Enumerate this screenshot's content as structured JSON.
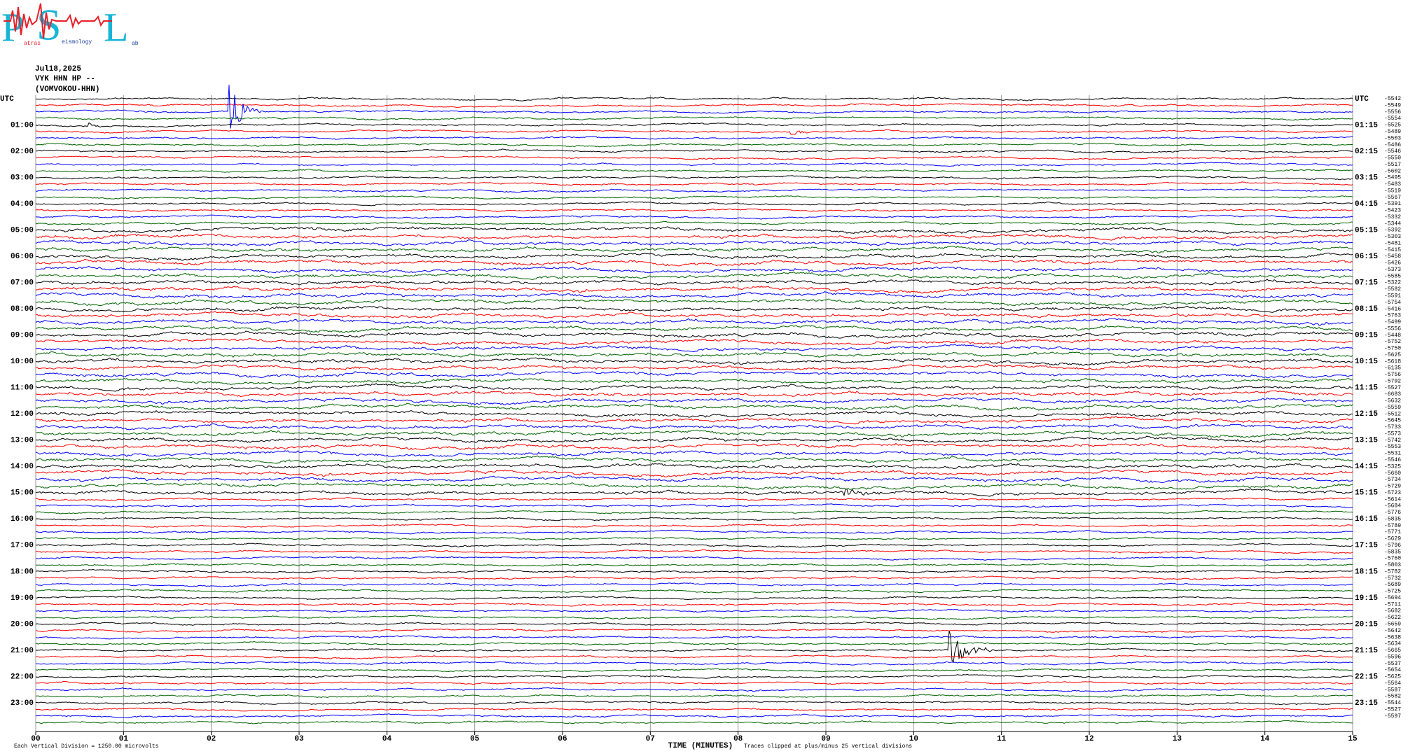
{
  "header": {
    "logo": {
      "letters": [
        "P",
        "S",
        "L"
      ],
      "small": [
        "atras",
        "eismology",
        "ab"
      ]
    },
    "date": "Jul18,2025",
    "station": "VYK HHN HP --",
    "site": "(VOMVOKOU-HHN)"
  },
  "chart_data": {
    "type": "helicorder",
    "left_labels": [
      "UTC",
      "01:00",
      "02:00",
      "03:00",
      "04:00",
      "05:00",
      "06:00",
      "07:00",
      "08:00",
      "09:00",
      "10:00",
      "11:00",
      "12:00",
      "13:00",
      "14:00",
      "15:00",
      "16:00",
      "17:00",
      "18:00",
      "19:00",
      "20:00",
      "21:00",
      "22:00",
      "23:00"
    ],
    "right_labels": [
      "UTC",
      "01:15",
      "02:15",
      "03:15",
      "04:15",
      "05:15",
      "06:15",
      "07:15",
      "08:15",
      "09:15",
      "10:15",
      "11:15",
      "12:15",
      "13:15",
      "14:15",
      "15:15",
      "16:15",
      "17:15",
      "18:15",
      "19:15",
      "20:15",
      "21:15",
      "22:15",
      "23:15"
    ],
    "trace_offsets": [
      -5542,
      -5549,
      -5556,
      -5554,
      -5525,
      -5489,
      -5503,
      -5486,
      -5546,
      -5550,
      -5517,
      -5602,
      -5495,
      -5483,
      -5519,
      -5567,
      -5391,
      -5423,
      -5332,
      -5344,
      -5392,
      -5303,
      -5481,
      -5415,
      -5458,
      -5426,
      -5373,
      -5585,
      -5322,
      -5582,
      -5591,
      -5754,
      -5416,
      -5763,
      -5499,
      -5556,
      -5448,
      -5752,
      -5750,
      -5625,
      -5618,
      -6135,
      -5756,
      -5792,
      -5527,
      -6683,
      -5632,
      -5559,
      -5512,
      -5645,
      -5733,
      -5573,
      -5742,
      -5553,
      -5531,
      -5546,
      -5325,
      -5660,
      -5734,
      -5729,
      -5723,
      -5614,
      -5684,
      -5776,
      -5835,
      -5789,
      -5771,
      -5629,
      -5796,
      -5835,
      -5760,
      -5803,
      -5782,
      -5732,
      -5689,
      -5725,
      -5694,
      -5711,
      -5682,
      -5622,
      -5659,
      -5642,
      -5638,
      -5634,
      -5665,
      -5596,
      -5537,
      -5654,
      -5625,
      -5564,
      -5587,
      -5582,
      -5544,
      -5527,
      -5597
    ],
    "trace_colors": [
      "#000000",
      "#ff0000",
      "#0000ff",
      "#006400"
    ],
    "xlim": [
      0,
      15
    ],
    "xticks": [
      {
        "value": 0,
        "label": "00"
      },
      {
        "value": 1,
        "label": "01"
      },
      {
        "value": 2,
        "label": "02"
      },
      {
        "value": 3,
        "label": "03"
      },
      {
        "value": 4,
        "label": "04"
      },
      {
        "value": 5,
        "label": "05"
      },
      {
        "value": 6,
        "label": "06"
      },
      {
        "value": 7,
        "label": "07"
      },
      {
        "value": 8,
        "label": "08"
      },
      {
        "value": 9,
        "label": "09"
      },
      10,
      11,
      12,
      13,
      14,
      15
    ],
    "xlabel": "TIME (MINUTES)",
    "footnote_left": "Each Vertical Division = 1250.00 microvolts",
    "footnote_right": "Traces clipped at plus/minus 25 vertical divisions",
    "grid": true
  }
}
